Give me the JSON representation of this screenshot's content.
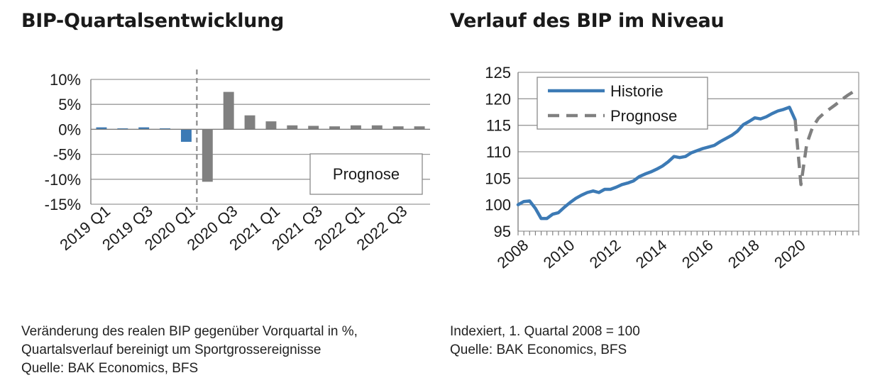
{
  "colors": {
    "history": "#3c7ab5",
    "forecast": "#808080",
    "grid": "#9a9a9a",
    "axis": "#7a7a7a"
  },
  "chart_data": [
    {
      "type": "bar",
      "title": "BIP-Quartalsentwicklung",
      "notes": [
        "Veränderung des realen BIP gegenüber Vorquartal in %,",
        "Quartalsverlauf bereinigt um Sportgrossereignisse",
        "Quelle: BAK Economics, BFS"
      ],
      "categories": [
        "2019 Q1",
        "2019 Q2",
        "2019 Q3",
        "2019 Q4",
        "2020 Q1",
        "2020 Q2",
        "2020 Q3",
        "2020 Q4",
        "2021 Q1",
        "2021 Q2",
        "2021 Q3",
        "2021 Q4",
        "2022 Q1",
        "2022 Q2",
        "2022 Q3",
        "2022 Q4"
      ],
      "tick_labels": [
        "2019 Q1",
        "2019 Q3",
        "2020 Q1",
        "2020 Q3",
        "2021 Q1",
        "2021 Q3",
        "2022 Q1",
        "2022 Q3"
      ],
      "series": [
        {
          "name": "Historie",
          "values": [
            0.4,
            0.2,
            0.4,
            0.2,
            -2.5,
            null,
            null,
            null,
            null,
            null,
            null,
            null,
            null,
            null,
            null,
            null
          ]
        },
        {
          "name": "Prognose",
          "values": [
            null,
            null,
            null,
            null,
            null,
            -10.5,
            7.5,
            2.8,
            1.6,
            0.8,
            0.7,
            0.6,
            0.8,
            0.8,
            0.6,
            0.6
          ]
        }
      ],
      "ylim": [
        -15,
        10
      ],
      "yticks": [
        -15,
        -10,
        -5,
        0,
        5,
        10
      ],
      "ytick_labels": [
        "-15%",
        "-10%",
        "-5%",
        "0%",
        "5%",
        "10%"
      ],
      "forecast_start_after": "2020 Q1",
      "legend_label": "Prognose",
      "legend_position": "bottom-right",
      "grid": true
    },
    {
      "type": "line",
      "title": "Verlauf des BIP im Niveau",
      "notes": [
        "Indexiert, 1. Quartal 2008 = 100",
        "Quelle: BAK Economics, BFS"
      ],
      "xlim": [
        2008,
        2022.75
      ],
      "xticks": [
        2008,
        2010,
        2012,
        2014,
        2016,
        2018,
        2020
      ],
      "ylim": [
        95,
        125
      ],
      "yticks": [
        95,
        100,
        105,
        110,
        115,
        120,
        125
      ],
      "series": [
        {
          "name": "Historie",
          "style": "solid",
          "x": [
            2008,
            2008.25,
            2008.5,
            2008.75,
            2009,
            2009.25,
            2009.5,
            2009.75,
            2010,
            2010.25,
            2010.5,
            2010.75,
            2011,
            2011.25,
            2011.5,
            2011.75,
            2012,
            2012.25,
            2012.5,
            2012.75,
            2013,
            2013.25,
            2013.5,
            2013.75,
            2014,
            2014.25,
            2014.5,
            2014.75,
            2015,
            2015.25,
            2015.5,
            2015.75,
            2016,
            2016.25,
            2016.5,
            2016.75,
            2017,
            2017.25,
            2017.5,
            2017.75,
            2018,
            2018.25,
            2018.5,
            2018.75,
            2019,
            2019.25,
            2019.5,
            2019.75,
            2020
          ],
          "y": [
            100,
            100.6,
            100.7,
            99.3,
            97.4,
            97.4,
            98.2,
            98.5,
            99.5,
            100.4,
            101.2,
            101.8,
            102.3,
            102.6,
            102.3,
            102.9,
            102.9,
            103.3,
            103.8,
            104.1,
            104.5,
            105.3,
            105.8,
            106.2,
            106.7,
            107.3,
            108.1,
            109.1,
            108.9,
            109.1,
            109.8,
            110.2,
            110.6,
            110.9,
            111.2,
            111.9,
            112.5,
            113.1,
            113.9,
            115.1,
            115.7,
            116.4,
            116.2,
            116.6,
            117.2,
            117.7,
            118.0,
            118.4,
            116.0
          ]
        },
        {
          "name": "Prognose",
          "style": "dashed",
          "x": [
            2020,
            2020.25,
            2020.5,
            2020.75,
            2021,
            2021.25,
            2021.5,
            2021.75,
            2022,
            2022.25,
            2022.5,
            2022.75
          ],
          "y": [
            116.0,
            103.8,
            111.5,
            114.6,
            116.3,
            117.3,
            118.1,
            118.9,
            119.8,
            120.6,
            121.3,
            121.9
          ]
        }
      ],
      "legend_position": "top-left",
      "grid": true
    }
  ]
}
